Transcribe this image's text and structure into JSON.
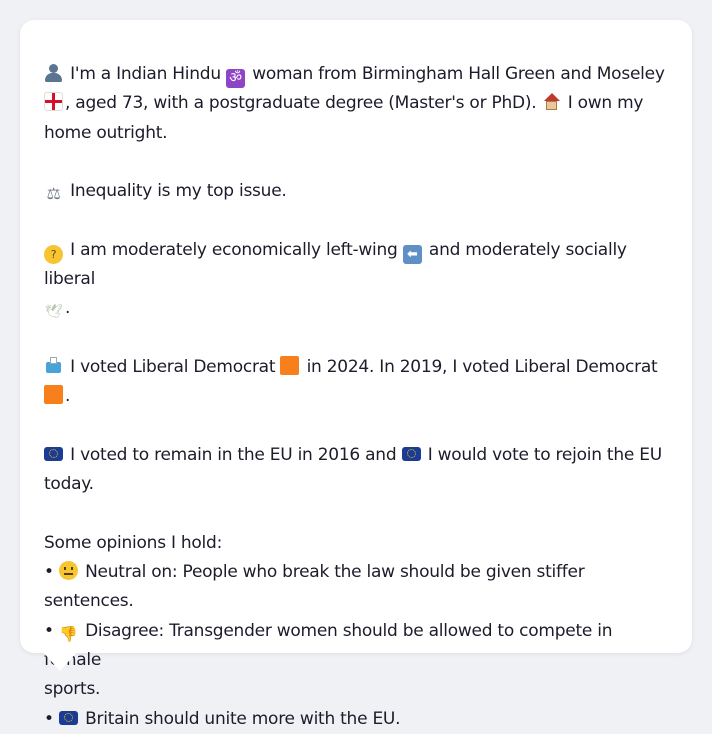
{
  "profile": {
    "line1": {
      "a": "I'm a Indian Hindu",
      "b": "woman from Birmingham Hall Green and Moseley",
      "c": ", aged 73, with a postgraduate degree (Master's or PhD).",
      "d": "I own my",
      "e": "home outright."
    },
    "issue": "Inequality is my top issue.",
    "ideology": {
      "a": "I am moderately economically left-wing",
      "b": "and moderately socially liberal",
      "c": "."
    },
    "votes": {
      "a": "I voted Liberal Democrat",
      "b": "in 2024. In 2019, I voted Liberal Democrat",
      "c": "."
    },
    "eu": {
      "a": "I voted to remain in the EU in 2016 and",
      "b": "I would vote to rejoin the EU",
      "c": "today."
    },
    "opinions_heading": "Some opinions I hold:",
    "opinions": [
      {
        "bullet": "•",
        "text": "Neutral on: People who break the law should be given stiffer sentences."
      },
      {
        "bullet": "•",
        "text": "Disagree: Transgender women should be allowed to compete in female",
        "cont": "sports."
      },
      {
        "bullet": "•",
        "text": "Britain should unite more with the EU."
      }
    ]
  },
  "icons": {
    "person": "bust-in-silhouette",
    "om": "om-symbol",
    "om_glyph": "ॐ",
    "flag": "england-flag",
    "house": "house-with-garden",
    "scales": "balance-scale",
    "scales_glyph": "⚖",
    "thinking": "thinking-face",
    "thinking_glyph": "?",
    "left_arrow": "left-arrow",
    "left_arrow_glyph": "⬅",
    "dove": "dove",
    "dove_glyph": "🕊",
    "ballot": "ballot-box",
    "orange_square": "orange-square",
    "eu_flag": "eu-flag",
    "neutral_face": "neutral-face",
    "thumbs_down": "thumbs-down",
    "thumbs_down_glyph": "👎"
  },
  "colors": {
    "background": "#f0f1f5",
    "bubble": "#ffffff",
    "text": "#1c1c2a",
    "lib_dem": "#f7801d",
    "eu_blue": "#1c3b95"
  }
}
